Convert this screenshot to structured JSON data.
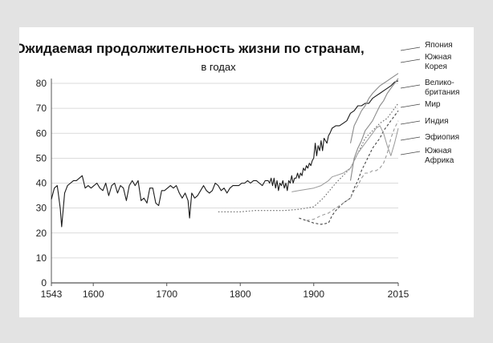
{
  "chart_data": {
    "type": "line",
    "title": "Ожидаемая продолжительность жизни по странам,",
    "subtitle": "в годах",
    "xlabel": "",
    "ylabel": "",
    "xlim": [
      1543,
      2015
    ],
    "ylim": [
      0,
      80
    ],
    "yticks": [
      0,
      10,
      20,
      30,
      40,
      50,
      60,
      70,
      80
    ],
    "xticks": [
      1543,
      1600,
      1700,
      1800,
      1900,
      2015
    ],
    "grid": "horizontal",
    "series": [
      {
        "name": "Великобритания",
        "style": "solid-dark",
        "x": [
          1543,
          1547,
          1551,
          1555,
          1557,
          1561,
          1565,
          1569,
          1573,
          1577,
          1581,
          1585,
          1589,
          1593,
          1597,
          1601,
          1605,
          1609,
          1613,
          1617,
          1621,
          1625,
          1629,
          1633,
          1637,
          1641,
          1645,
          1649,
          1653,
          1657,
          1661,
          1665,
          1669,
          1673,
          1677,
          1681,
          1685,
          1689,
          1693,
          1697,
          1701,
          1705,
          1709,
          1713,
          1717,
          1721,
          1725,
          1729,
          1731,
          1734,
          1738,
          1742,
          1746,
          1750,
          1754,
          1758,
          1762,
          1766,
          1770,
          1774,
          1778,
          1782,
          1786,
          1790,
          1794,
          1798,
          1802,
          1806,
          1810,
          1814,
          1818,
          1822,
          1826,
          1830,
          1834,
          1838,
          1840,
          1842,
          1844,
          1846,
          1848,
          1850,
          1852,
          1854,
          1856,
          1858,
          1860,
          1862,
          1864,
          1866,
          1868,
          1870,
          1872,
          1874,
          1876,
          1878,
          1880,
          1882,
          1884,
          1886,
          1888,
          1890,
          1892,
          1894,
          1896,
          1898,
          1900,
          1902,
          1904,
          1906,
          1908,
          1910,
          1912,
          1914,
          1916,
          1918,
          1920,
          1922,
          1925,
          1930,
          1935,
          1940,
          1945,
          1950,
          1955,
          1960,
          1965,
          1970,
          1975,
          1980,
          1985,
          1990,
          1995,
          2000,
          2005,
          2010,
          2015
        ],
        "y": [
          33.5,
          38,
          39,
          30,
          22.5,
          36,
          39,
          40,
          41,
          41,
          42,
          43,
          38,
          39,
          38,
          39,
          40,
          38,
          37,
          40,
          35,
          39,
          40,
          36,
          39,
          38,
          33,
          39,
          41,
          39,
          41,
          33,
          34,
          32,
          38,
          38,
          32,
          31,
          37,
          37,
          38,
          39,
          38,
          39,
          36,
          34,
          36,
          33,
          26,
          36,
          34,
          35,
          37,
          39,
          37,
          36,
          37,
          40,
          39,
          37,
          38,
          36,
          38,
          39,
          39,
          39,
          40,
          40,
          41,
          40,
          41,
          41,
          40,
          39,
          41,
          41,
          40,
          42,
          39,
          42,
          38,
          41,
          37,
          40,
          39,
          41,
          38,
          40,
          37,
          41,
          40,
          43,
          40,
          42,
          42,
          44,
          42,
          44,
          43,
          46,
          45,
          47,
          46,
          48,
          47,
          49,
          50,
          56,
          51,
          55,
          53,
          57,
          53,
          58,
          57,
          56,
          59,
          60,
          62,
          63,
          63,
          64,
          65,
          68,
          69,
          71,
          71,
          72,
          72,
          74,
          75,
          76,
          77,
          78,
          79,
          80.5,
          81
        ]
      },
      {
        "name": "Япония",
        "style": "solid-gray",
        "x": [
          1950,
          1955,
          1960,
          1965,
          1970,
          1975,
          1980,
          1985,
          1990,
          1995,
          2000,
          2005,
          2010,
          2015
        ],
        "y": [
          56,
          63,
          66,
          69,
          71,
          74,
          76,
          77.5,
          79,
          80,
          81,
          82,
          83,
          84
        ]
      },
      {
        "name": "Южная Корея",
        "style": "solid-gray",
        "x": [
          1950,
          1955,
          1960,
          1965,
          1970,
          1975,
          1980,
          1985,
          1990,
          1995,
          2000,
          2005,
          2010,
          2015
        ],
        "y": [
          41,
          50,
          54,
          57,
          61,
          63,
          65,
          68,
          71,
          73,
          76,
          78,
          80,
          82
        ]
      },
      {
        "name": "Мир",
        "style": "dotted",
        "x": [
          1770,
          1800,
          1820,
          1840,
          1860,
          1880,
          1900,
          1913,
          1930,
          1950,
          1960,
          1970,
          1980,
          1990,
          2000,
          2010,
          2015
        ],
        "y": [
          28.5,
          28.5,
          29,
          29,
          29,
          29.5,
          30.5,
          34,
          40,
          46,
          52,
          58,
          61,
          64,
          66,
          70,
          72
        ]
      },
      {
        "name": "Индия",
        "style": "dashed",
        "x": [
          1880,
          1890,
          1900,
          1910,
          1920,
          1925,
          1930,
          1940,
          1950,
          1955,
          1960,
          1965,
          1970,
          1975,
          1980,
          1985,
          1990,
          1995,
          2000,
          2005,
          2010,
          2015
        ],
        "y": [
          26,
          25,
          24,
          23.5,
          24,
          27,
          29,
          32,
          34,
          38,
          41,
          45,
          48,
          51,
          54,
          56,
          58,
          61,
          63,
          65,
          67,
          69
        ]
      },
      {
        "name": "Эфиопия",
        "style": "dashed-light",
        "x": [
          1890,
          1900,
          1910,
          1920,
          1930,
          1940,
          1950,
          1955,
          1960,
          1965,
          1970,
          1975,
          1980,
          1985,
          1990,
          1995,
          2000,
          2005,
          2010,
          2015
        ],
        "y": [
          25,
          25.5,
          27,
          28,
          30,
          32,
          34,
          37,
          39,
          42,
          44,
          44,
          45,
          45,
          46,
          48,
          52,
          58,
          62,
          65
        ]
      },
      {
        "name": "Южная Африка",
        "style": "solid-light",
        "x": [
          1870,
          1880,
          1890,
          1900,
          1910,
          1920,
          1925,
          1930,
          1940,
          1950,
          1955,
          1960,
          1965,
          1970,
          1975,
          1980,
          1985,
          1990,
          1995,
          2000,
          2005,
          2010,
          2015
        ],
        "y": [
          36.5,
          37,
          37.5,
          38,
          39,
          41,
          42.5,
          43,
          44,
          46,
          49,
          52,
          54,
          56,
          58,
          60,
          62,
          63,
          60,
          55,
          51,
          56,
          62
        ]
      }
    ],
    "labels": [
      {
        "key": "japan",
        "text": [
          "Япония"
        ]
      },
      {
        "key": "korea",
        "text": [
          "Южная",
          "Корея"
        ]
      },
      {
        "key": "uk",
        "text": [
          "Велико-",
          "британия"
        ]
      },
      {
        "key": "world",
        "text": [
          "Мир"
        ]
      },
      {
        "key": "india",
        "text": [
          "Индия"
        ]
      },
      {
        "key": "ethiopia",
        "text": [
          "Эфиопия"
        ]
      },
      {
        "key": "safrica",
        "text": [
          "Южная",
          "Африка"
        ]
      }
    ]
  }
}
